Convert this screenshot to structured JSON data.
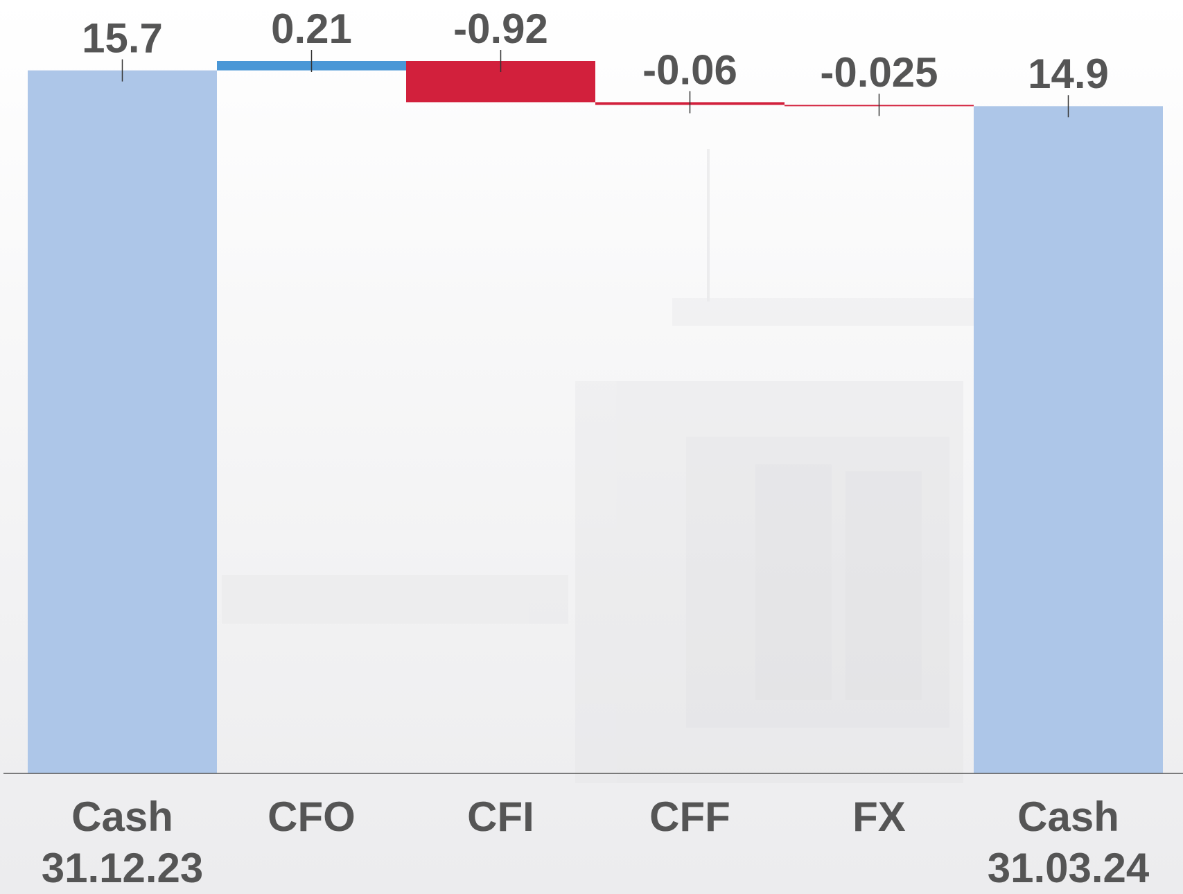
{
  "chart_data": {
    "type": "waterfall",
    "categories": [
      [
        "Cash",
        "31.12.23"
      ],
      [
        "CFO"
      ],
      [
        "CFI"
      ],
      [
        "CFF"
      ],
      [
        "FX"
      ],
      [
        "Cash",
        "31.03.24"
      ]
    ],
    "values": [
      15.7,
      0.21,
      -0.92,
      -0.06,
      -0.025,
      14.9
    ],
    "measure": [
      "total",
      "relative",
      "relative",
      "relative",
      "relative",
      "total"
    ],
    "colors": {
      "total": "#adc6e8",
      "increase": "#4a97d6",
      "decrease": "#d2203c"
    }
  }
}
